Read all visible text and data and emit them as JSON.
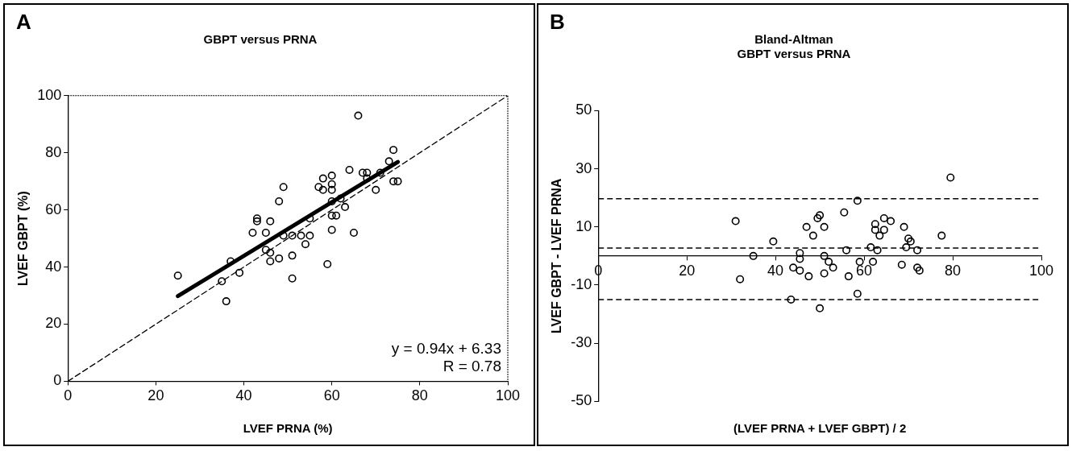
{
  "chart_data": [
    {
      "type": "scatter",
      "title": "GBPT versus PRNA",
      "xlabel": "LVEF PRNA (%)",
      "ylabel": "LVEF GBPT (%)",
      "annotations": [
        "A",
        "y = 0.94x + 6.33",
        "R = 0.78"
      ],
      "xlim": [
        0,
        100
      ],
      "ylim": [
        0,
        100
      ],
      "xticks": [
        0,
        20,
        40,
        60,
        80,
        100
      ],
      "yticks": [
        0,
        20,
        40,
        60,
        80,
        100
      ],
      "grid": false,
      "legend": false,
      "marker": "circle",
      "series": [
        {
          "type": "scatter",
          "color": "#000000",
          "x": [
            25,
            35,
            36,
            37,
            39,
            42,
            43,
            43,
            45,
            45,
            46,
            46,
            46,
            48,
            48,
            49,
            49,
            51,
            51,
            51,
            53,
            54,
            55,
            55,
            57,
            58,
            58,
            59,
            60,
            60,
            60,
            60,
            60,
            60,
            61,
            62,
            63,
            64,
            65,
            66,
            67,
            68,
            68,
            70,
            71,
            73,
            74,
            74,
            75
          ],
          "values": [
            37,
            35,
            28,
            42,
            38,
            52,
            57,
            56,
            52,
            46,
            45,
            42,
            56,
            43,
            63,
            68,
            51,
            51,
            44,
            36,
            51,
            48,
            51,
            57,
            68,
            71,
            67,
            41,
            72,
            69,
            67,
            63,
            58,
            53,
            58,
            64,
            61,
            74,
            52,
            93,
            73,
            73,
            71,
            67,
            73,
            77,
            81,
            70,
            70
          ]
        },
        {
          "type": "line",
          "color": "#000000",
          "marker": "none",
          "line_style": "solid",
          "x": [
            25,
            75
          ],
          "values": [
            29.8,
            76.8
          ]
        },
        {
          "type": "line",
          "color": "#000000",
          "marker": "none",
          "line_style": "dashed",
          "x": [
            0,
            100
          ],
          "values": [
            0,
            100
          ]
        }
      ]
    },
    {
      "type": "scatter",
      "title": "Bland-Altman\nGBPT versus PRNA",
      "xlabel": "(LVEF PRNA + LVEF GBPT) / 2",
      "ylabel": "LVEF GBPT - LVEF PRNA",
      "annotations": [
        "B"
      ],
      "xlim": [
        0,
        100
      ],
      "ylim": [
        -50,
        50
      ],
      "xticks": [
        0,
        20,
        40,
        60,
        80,
        100
      ],
      "yticks": [
        -50,
        -30,
        -10,
        10,
        30,
        50
      ],
      "grid": false,
      "legend": false,
      "marker": "circle",
      "ref_lines": [
        {
          "axis": "y",
          "value": 19.7,
          "label": null,
          "line_style": "dashed",
          "color": "#000000"
        },
        {
          "axis": "y",
          "value": 2.7,
          "label": null,
          "line_style": "dashed",
          "color": "#000000"
        },
        {
          "axis": "y",
          "value": -15,
          "label": null,
          "line_style": "dashed",
          "color": "#000000"
        }
      ],
      "series": [
        {
          "type": "scatter",
          "color": "#000000",
          "x": [
            31,
            32,
            35,
            39.5,
            43.5,
            44,
            45.5,
            45.5,
            45.5,
            47,
            47.5,
            48.5,
            49.5,
            50,
            50,
            51,
            51,
            51,
            52,
            53,
            55.5,
            56,
            56.5,
            58.5,
            58.5,
            59,
            61.5,
            62,
            62.5,
            62.5,
            63,
            63.5,
            64.5,
            64.5,
            66,
            68.5,
            69,
            69.5,
            70,
            70.5,
            72,
            72,
            72.5,
            77.5,
            79.5
          ],
          "values": [
            12,
            -8,
            0,
            5,
            -15,
            -4,
            1,
            -1,
            -5,
            10,
            -7,
            7,
            13,
            14,
            -18,
            10,
            0,
            -6,
            -2,
            -4,
            15,
            2,
            -7,
            19,
            -13,
            -2,
            3,
            -2,
            11,
            9,
            2,
            7,
            13,
            9,
            12,
            -3,
            10,
            3,
            6,
            5,
            2,
            -4,
            -5,
            7,
            27
          ]
        }
      ]
    }
  ]
}
